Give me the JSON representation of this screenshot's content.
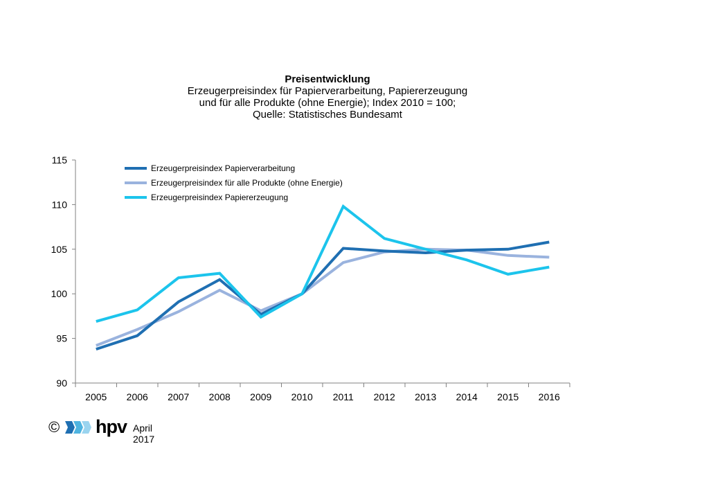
{
  "title": "Preisentwicklung",
  "subtitle_lines": [
    "Erzeugerpreisindex für Papierverarbeitung, Papiererzeugung",
    "und für alle Produkte (ohne Energie); Index 2010 = 100;",
    "Quelle: Statistisches Bundesamt"
  ],
  "chart_data": {
    "type": "line",
    "x": [
      "2005",
      "2006",
      "2007",
      "2008",
      "2009",
      "2010",
      "2011",
      "2012",
      "2013",
      "2014",
      "2015",
      "2016"
    ],
    "ylim": [
      90,
      115
    ],
    "yticks": [
      90,
      95,
      100,
      105,
      110,
      115
    ],
    "grid": false,
    "legend_position": "top-left",
    "series": [
      {
        "name": "Erzeugerpreisindex Papierverarbeitung",
        "color": "#1f6fb2",
        "values": [
          93.8,
          95.3,
          99.1,
          101.6,
          97.7,
          100.0,
          105.1,
          104.8,
          104.6,
          104.9,
          105.0,
          105.8
        ]
      },
      {
        "name": "Erzeugerpreisindex für alle Produkte (ohne Energie)",
        "color": "#9ab3de",
        "values": [
          94.2,
          96.0,
          98.0,
          100.4,
          98.1,
          100.0,
          103.5,
          104.7,
          105.0,
          104.9,
          104.3,
          104.1
        ]
      },
      {
        "name": "Erzeugerpreisindex Papiererzeugung",
        "color": "#1cc4ec",
        "values": [
          96.9,
          98.2,
          101.8,
          102.3,
          97.4,
          100.0,
          109.8,
          106.2,
          105.0,
          103.8,
          102.2,
          103.0
        ]
      }
    ]
  },
  "footer": {
    "copyright_symbol": "©",
    "brand": "hpv",
    "date": "April 2017"
  }
}
